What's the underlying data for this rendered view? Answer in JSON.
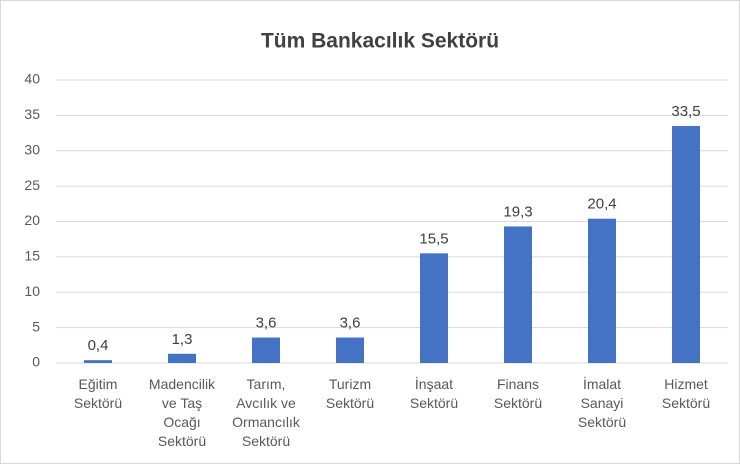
{
  "chart_data": {
    "type": "bar",
    "title": "Tüm Bankacılık Sektörü",
    "categories": [
      "Eğitim\nSektörü",
      "Madencilik\nve Taş\nOcağı\nSektörü",
      "Tarım,\nAvcılık ve\nOrmancılık\nSektörü",
      "Turizm\nSektörü",
      "İnşaat\nSektörü",
      "Finans\nSektörü",
      "İmalat\nSanayi\nSektörü",
      "Hizmet\nSektörü"
    ],
    "values": [
      0.4,
      1.3,
      3.6,
      3.6,
      15.5,
      19.3,
      20.4,
      33.5
    ],
    "value_labels": [
      "0,4",
      "1,3",
      "3,6",
      "3,6",
      "15,5",
      "19,3",
      "20,4",
      "33,5"
    ],
    "color": "#4472c4",
    "ylim": [
      0,
      40
    ],
    "yticks": [
      0,
      5,
      10,
      15,
      20,
      25,
      30,
      35,
      40
    ],
    "grid": true
  }
}
